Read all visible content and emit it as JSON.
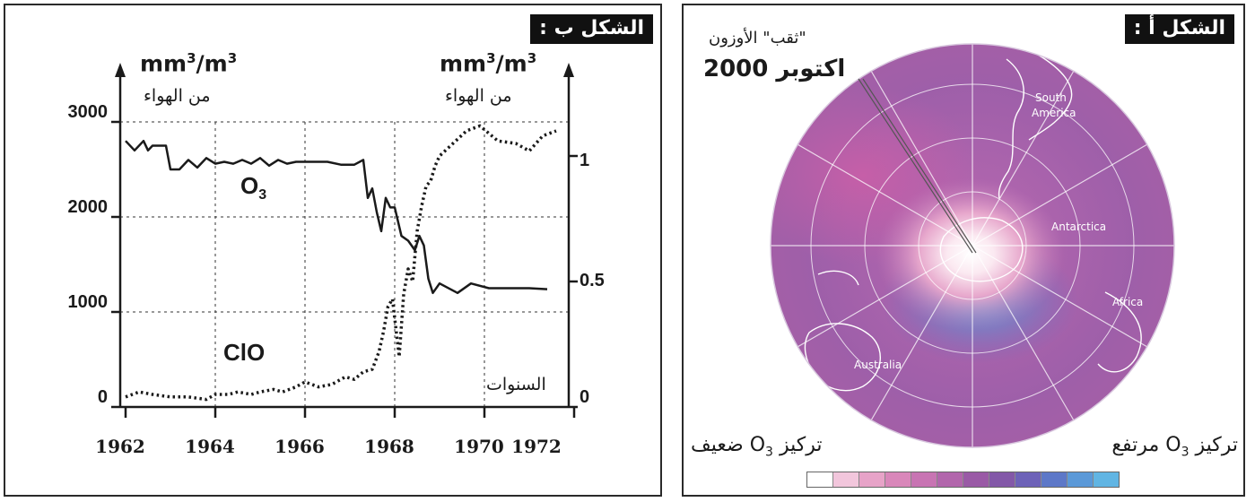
{
  "panel_b": {
    "label": "الشكل ب :",
    "left_unit": "mm³/m³",
    "right_unit": "mm³/m³",
    "left_air": "من الهواء",
    "right_air": "من الهواء",
    "years_label": "السنوات",
    "o3_label": "O₃",
    "clo_label": "ClO"
  },
  "panel_a": {
    "label": "الشكل أ :",
    "hole_caption": "\"ثقب\" الأوزون",
    "date_caption": "اكتوبر 2000",
    "high_conc": "تركيز O₃ مرتفع",
    "low_conc": "تركيز O₃ ضعيف",
    "labels": {
      "south_america_1": "South",
      "south_america_2": "America",
      "antarctica": "Antarctica",
      "africa": "Africa",
      "australia": "Australia"
    },
    "legend_colors": [
      "#ffffff",
      "#f2c6dc",
      "#e7a3c8",
      "#d987ba",
      "#c874b3",
      "#b266ac",
      "#9a5aa6",
      "#8358a8",
      "#6d62b8",
      "#5d78c8",
      "#5b99d8",
      "#61b5e3"
    ]
  },
  "chart_data": {
    "type": "line",
    "x_ticks": [
      "1962",
      "1964",
      "1966",
      "1968",
      "1970",
      "1972"
    ],
    "xlim": [
      1962,
      1972
    ],
    "left_axis": {
      "ticks": [
        "0",
        "1000",
        "2000",
        "3000"
      ],
      "ylim": [
        0,
        3000
      ]
    },
    "right_axis": {
      "ticks": [
        "0",
        "0.5",
        "1"
      ],
      "ylim": [
        0,
        1.2
      ]
    },
    "series": [
      {
        "name": "O₃",
        "axis": "left",
        "style": "solid",
        "x": [
          1962.0,
          1962.2,
          1962.4,
          1962.5,
          1962.6,
          1962.9,
          1963.0,
          1963.2,
          1963.4,
          1963.6,
          1963.8,
          1964.0,
          1964.2,
          1964.4,
          1964.6,
          1964.8,
          1965.0,
          1965.2,
          1965.4,
          1965.6,
          1965.8,
          1966.0,
          1966.5,
          1966.8,
          1967.1,
          1967.3,
          1967.4,
          1967.5,
          1967.6,
          1967.7,
          1967.8,
          1967.9,
          1968.0,
          1968.15,
          1968.3,
          1968.45,
          1968.55,
          1968.65,
          1968.75,
          1968.85,
          1969.0,
          1969.4,
          1969.7,
          1970.1,
          1971.0,
          1971.4
        ],
        "y": [
          2800,
          2700,
          2800,
          2700,
          2750,
          2750,
          2500,
          2500,
          2600,
          2520,
          2620,
          2560,
          2580,
          2560,
          2600,
          2560,
          2620,
          2540,
          2600,
          2560,
          2580,
          2580,
          2580,
          2550,
          2550,
          2600,
          2200,
          2300,
          2050,
          1850,
          2200,
          2100,
          2100,
          1800,
          1750,
          1650,
          1800,
          1700,
          1350,
          1200,
          1300,
          1200,
          1300,
          1250,
          1250,
          1240
        ]
      },
      {
        "name": "ClO",
        "axis": "right",
        "style": "dotted",
        "x": [
          1962.0,
          1962.3,
          1962.6,
          1963.0,
          1963.4,
          1963.8,
          1964.0,
          1964.3,
          1964.5,
          1964.8,
          1965.0,
          1965.3,
          1965.5,
          1965.8,
          1966.0,
          1966.3,
          1966.6,
          1966.9,
          1967.1,
          1967.3,
          1967.5,
          1967.65,
          1967.75,
          1967.85,
          1967.95,
          1968.1,
          1968.2,
          1968.3,
          1968.4,
          1968.5,
          1968.6,
          1968.7,
          1968.8,
          1968.9,
          1969.0,
          1969.3,
          1969.6,
          1969.9,
          1970.3,
          1970.7,
          1971.0,
          1971.3,
          1971.6
        ],
        "y": [
          0.04,
          0.06,
          0.05,
          0.04,
          0.04,
          0.03,
          0.05,
          0.05,
          0.06,
          0.05,
          0.06,
          0.07,
          0.06,
          0.08,
          0.1,
          0.08,
          0.09,
          0.12,
          0.11,
          0.14,
          0.15,
          0.22,
          0.3,
          0.4,
          0.43,
          0.2,
          0.45,
          0.55,
          0.5,
          0.7,
          0.8,
          0.88,
          0.9,
          0.96,
          1.0,
          1.05,
          1.1,
          1.12,
          1.06,
          1.05,
          1.02,
          1.08,
          1.1
        ]
      }
    ]
  }
}
